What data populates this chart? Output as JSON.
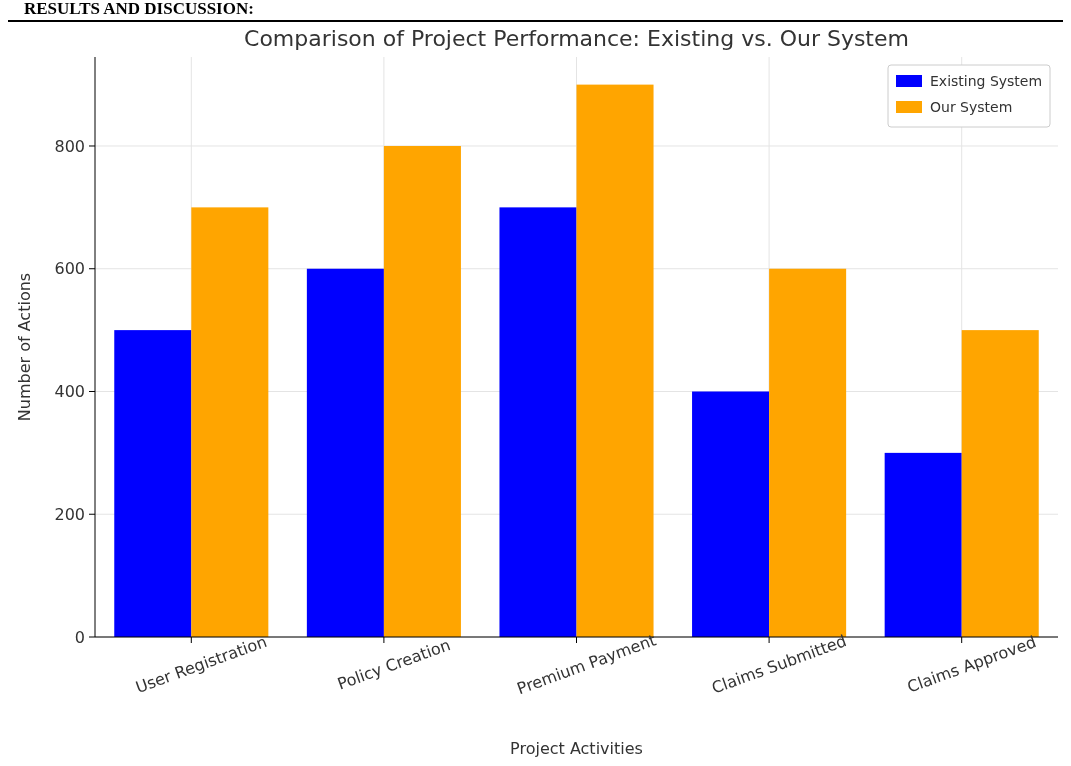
{
  "chart_data": {
    "type": "bar",
    "title": "Comparison of Project Performance: Existing vs. Our System",
    "xlabel": "Project Activities",
    "ylabel": "Number of Actions",
    "annotations": [
      "RESULTS AND DISCUSSION:"
    ],
    "categories": [
      "User Registration",
      "Policy Creation",
      "Premium Payment",
      "Claims Submitted",
      "Claims Approved"
    ],
    "series": [
      {
        "name": "Existing System",
        "color": "#0000ff",
        "values": [
          500,
          600,
          700,
          400,
          300
        ]
      },
      {
        "name": "Our System",
        "color": "#ffa500",
        "values": [
          700,
          800,
          900,
          600,
          500
        ]
      }
    ],
    "ylim": [
      0,
      945
    ],
    "yticks": [
      0,
      200,
      400,
      600,
      800
    ],
    "grid": true,
    "legend": "top right"
  }
}
